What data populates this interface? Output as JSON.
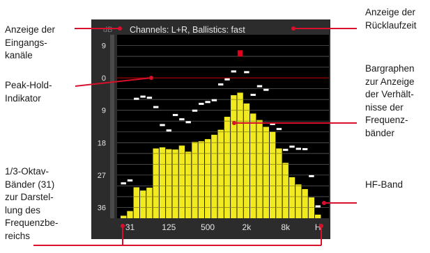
{
  "meter": {
    "header": "Channels: L+R, Ballistics: fast",
    "header_left": "dB",
    "y_ticks": [
      {
        "label": "9",
        "db": 9
      },
      {
        "label": "0",
        "db": 0
      },
      {
        "label": "9",
        "db": -9
      },
      {
        "label": "18",
        "db": -18
      },
      {
        "label": "27",
        "db": -27
      },
      {
        "label": "36",
        "db": -36
      }
    ],
    "x_ticks": [
      {
        "label": "31",
        "band": 1
      },
      {
        "label": "125",
        "band": 7
      },
      {
        "label": "500",
        "band": 13
      },
      {
        "label": "2k",
        "band": 19
      },
      {
        "label": "8k",
        "band": 25
      },
      {
        "label": "H",
        "band": 30
      }
    ],
    "db_range": [
      -39,
      12
    ],
    "zero_line_db": 0,
    "colors": {
      "background": "#000000",
      "frame": "#2c2c2c",
      "bar": "#f1ea21",
      "bar_segment_line": "#8a8410",
      "over": "#e3001b",
      "peak": "#ffffff",
      "grid": "#5a5a5a",
      "zero_line": "#8b0000",
      "text": "#e6e6e6",
      "leader": "#d8102c"
    }
  },
  "chart_data": {
    "type": "bar",
    "categories": [
      "",
      "31",
      "",
      "",
      "",
      "",
      "",
      "125",
      "",
      "",
      "",
      "",
      "",
      "500",
      "",
      "",
      "",
      "",
      "",
      "2k",
      "",
      "",
      "",
      "",
      "",
      "8k",
      "",
      "",
      "",
      "",
      "H"
    ],
    "series": [
      {
        "values": [
          -38.3,
          -37.0,
          -30.4,
          -31.3,
          -30.5,
          -19.6,
          -19.3,
          -19.8,
          -19.9,
          -18.8,
          -20.5,
          -17.8,
          -17.6,
          -17.0,
          -15.8,
          -14.4,
          -10.8,
          -4.8,
          -4.1,
          -7.1,
          -9.9,
          -11.7,
          -13.6,
          -15.0,
          -19.6,
          -23.6,
          -27.6,
          -29.6,
          -30.9,
          -33.2,
          -38.0
        ]
      },
      {
        "values": [
          -29.3,
          -28.5,
          -5.8,
          -5.2,
          -5.5,
          -8.1,
          -13.1,
          -14.6,
          -10.3,
          -11.5,
          -12.3,
          -9.1,
          -7.2,
          -6.7,
          -6.2,
          -1.8,
          -0.4,
          1.8,
          7.3,
          1.6,
          -4.7,
          -2.3,
          -3.3,
          -12.8,
          -14.2,
          -20.0,
          -19.1,
          -19.7,
          -19.8,
          -27.3,
          -35.7
        ]
      }
    ],
    "ylim": [
      -39,
      12
    ],
    "peak_over_band": 18
  },
  "callouts": {
    "left": [
      {
        "text": "Anzeige der\nEingangs-\nkanäle"
      },
      {
        "text": "Peak-Hold-\nIndikator"
      },
      {
        "text": "1/3-Oktav-\nBänder (31)\nzur Darstel-\nlung des\nFrequenzbe-\nreichs"
      }
    ],
    "right": [
      {
        "text": "Anzeige der\nRücklaufzeit"
      },
      {
        "text": "Bargraphen\nzur Anzeige\nder Verhält-\nnisse der\nFrequenz-\nbänder"
      },
      {
        "text": "HF-Band"
      }
    ]
  }
}
